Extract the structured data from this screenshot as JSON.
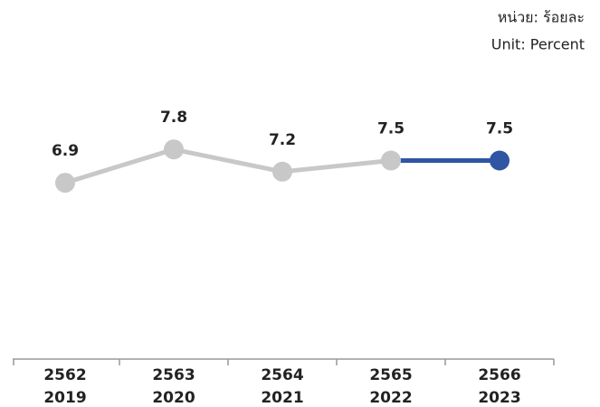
{
  "chart_data": {
    "type": "line",
    "annotations": [
      "หน่วย: ร้อยละ",
      "Unit: Percent"
    ],
    "categories": [
      [
        "2562",
        "2019"
      ],
      [
        "2563",
        "2020"
      ],
      [
        "2564",
        "2021"
      ],
      [
        "2565",
        "2022"
      ],
      [
        "2566",
        "2023"
      ]
    ],
    "values": [
      6.9,
      7.8,
      7.2,
      7.5,
      7.5
    ],
    "colors": [
      "#c8c8c8",
      "#c8c8c8",
      "#c8c8c8",
      "#c8c8c8",
      "#2f55a4"
    ],
    "ylim": [
      3,
      11
    ]
  }
}
